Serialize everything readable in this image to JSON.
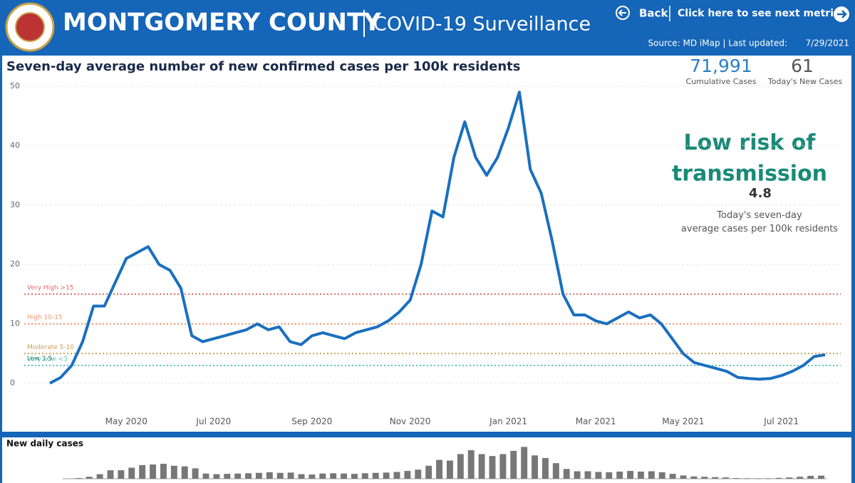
{
  "header": {
    "title": "MONTGOMERY COUNTY",
    "subtitle": "COVID-19 Surveillance",
    "back": "Back",
    "next": "Click here to see next metric",
    "source": "Source: MD iMap | Last updated:",
    "updated": "7/29/2021"
  },
  "kpis": [
    {
      "value": "71,991",
      "label": "Cumulative Cases"
    },
    {
      "value": "61",
      "label": "Today's New Cases"
    }
  ],
  "risk": {
    "status": "Low risk of transmission",
    "value": "4.8",
    "note": "Today's seven-day average cases per 100k residents"
  },
  "chart_data": [
    {
      "type": "line",
      "title": "Seven-day average number of new confirmed cases per 100k residents",
      "color": "#1a6fc0",
      "categories": [
        null,
        null,
        null,
        null,
        null,
        null,
        null,
        "May 2020",
        null,
        null,
        null,
        null,
        null,
        null,
        null,
        "Jul 2020",
        null,
        null,
        null,
        null,
        null,
        null,
        null,
        null,
        "Sep 2020",
        null,
        null,
        null,
        null,
        null,
        null,
        null,
        null,
        "Nov 2020",
        null,
        null,
        null,
        null,
        null,
        null,
        null,
        null,
        "Jan 2021",
        null,
        null,
        null,
        null,
        null,
        null,
        null,
        "Mar 2021",
        null,
        null,
        null,
        null,
        null,
        null,
        null,
        "May 2021",
        null,
        null,
        null,
        null,
        null,
        null,
        null,
        null,
        "Jul 2021",
        null,
        null,
        null,
        null
      ],
      "values": [
        0,
        1,
        3,
        7,
        13,
        13,
        17,
        21,
        22,
        23,
        20,
        19,
        16,
        8,
        7,
        7.5,
        8,
        8.5,
        9,
        10,
        9,
        9.5,
        7,
        6.5,
        8,
        8.5,
        8,
        7.5,
        8.5,
        9,
        9.5,
        10.5,
        12,
        14,
        20,
        29,
        28,
        38,
        44,
        38,
        35,
        38,
        43,
        49,
        36,
        32,
        24,
        15,
        11.5,
        11.5,
        10.5,
        10,
        11,
        12,
        11,
        11.5,
        10,
        7.5,
        5,
        3.5,
        3,
        2.5,
        2,
        1,
        0.8,
        0.7,
        0.8,
        1.3,
        2,
        3,
        4.5,
        4.8
      ],
      "ylim": [
        0,
        50
      ],
      "yticks": [
        0,
        10,
        20,
        30,
        40,
        50
      ],
      "grid": true,
      "thresholds": [
        {
          "label": "Very High >15",
          "value": 15,
          "color": "#e06666"
        },
        {
          "label": "High 10-15",
          "value": 10,
          "color": "#f0956a"
        },
        {
          "label": "Moderate 5-10",
          "value": 5,
          "color": "#c8a25a"
        },
        {
          "label": "Low 3-5",
          "value": 5,
          "color": "#c8a25a"
        },
        {
          "label": "Very Low <3",
          "value": 3,
          "color": "#5ec4b0"
        }
      ]
    },
    {
      "type": "bar",
      "title": "New daily cases",
      "color": "#777777",
      "ylim": [
        0,
        600
      ],
      "values": [
        0,
        11,
        32,
        74,
        137,
        137,
        179,
        221,
        231,
        242,
        210,
        200,
        168,
        84,
        74,
        79,
        84,
        89,
        95,
        105,
        95,
        100,
        74,
        68,
        84,
        89,
        84,
        79,
        89,
        95,
        100,
        110,
        126,
        147,
        210,
        305,
        294,
        399,
        462,
        399,
        368,
        399,
        452,
        515,
        378,
        336,
        252,
        158,
        121,
        121,
        110,
        105,
        116,
        126,
        116,
        121,
        105,
        79,
        53,
        37,
        32,
        26,
        21,
        11,
        8,
        7,
        8,
        14,
        21,
        32,
        47,
        50
      ]
    }
  ]
}
